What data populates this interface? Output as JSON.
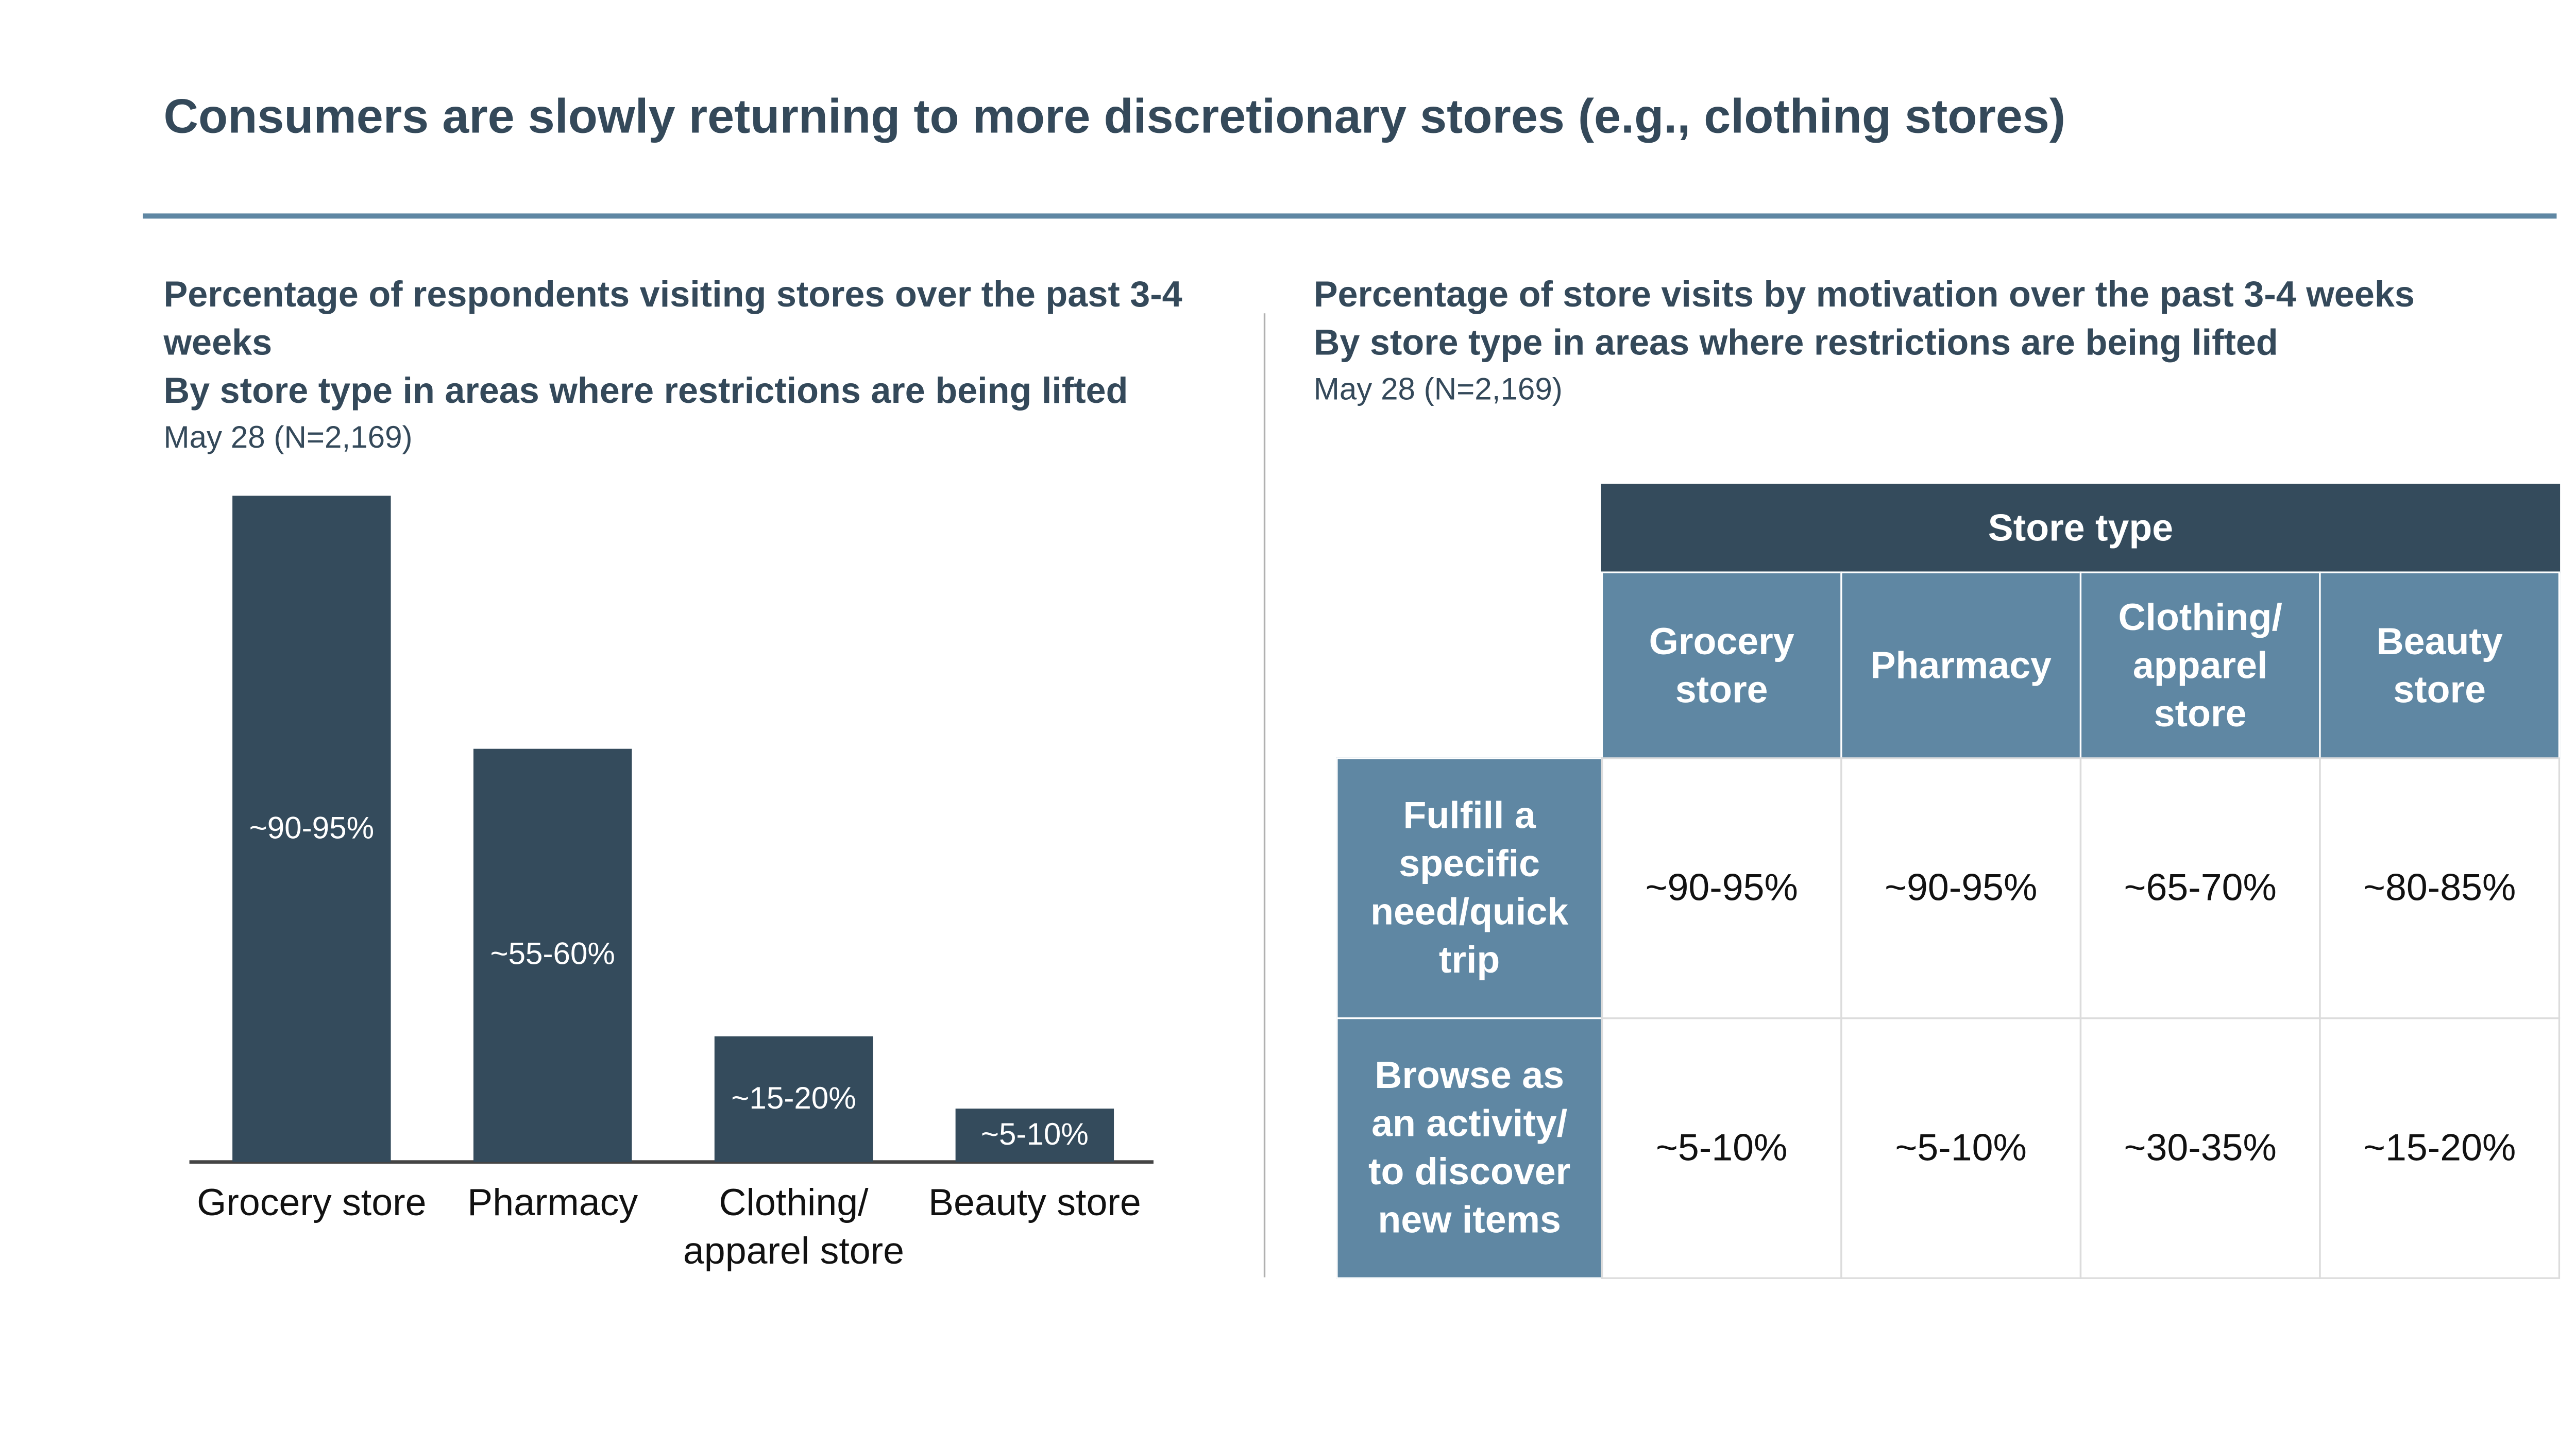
{
  "title": "Consumers are slowly returning to more discretionary stores (e.g., clothing stores)",
  "chart_data": {
    "type": "bar",
    "title": "Percentage of respondents visiting stores over the past 3-4 weeks",
    "subtitle": "By store type in areas where restrictions are being lifted",
    "note": "May 28 (N=2,169)",
    "categories": [
      "Grocery store",
      "Pharmacy",
      "Clothing/ apparel store",
      "Beauty store"
    ],
    "values": [
      92.5,
      57.5,
      17.5,
      7.5
    ],
    "value_labels": [
      "~90-95%",
      "~55-60%",
      "~15-20%",
      "~5-10%"
    ],
    "color": "#344b5c",
    "ylim": [
      0,
      100
    ]
  },
  "table": {
    "title": "Percentage of store visits by motivation over the past 3-4 weeks",
    "subtitle": "By store type in areas where restrictions are being lifted",
    "note": "May 28 (N=2,169)",
    "header": "Store type",
    "columns": [
      "Grocery store",
      "Pharmacy",
      "Clothing/ apparel store",
      "Beauty store"
    ],
    "rows": [
      {
        "label": "Fulfill a specific need/quick trip",
        "cells": [
          "~90-95%",
          "~90-95%",
          "~65-70%",
          "~80-85%"
        ]
      },
      {
        "label": "Browse as an activity/ to discover new items",
        "cells": [
          "~5-10%",
          "~5-10%",
          "~30-35%",
          "~15-20%"
        ]
      }
    ]
  }
}
